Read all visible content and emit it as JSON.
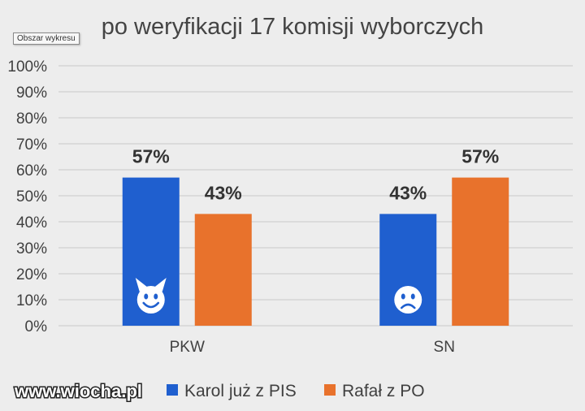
{
  "tooltip": "Obszar wykresu",
  "watermark": "www.wiocha.pl",
  "chart_data": {
    "type": "bar",
    "title": "po weryfikacji 17 komisji wyborczych",
    "categories": [
      "PKW",
      "SN"
    ],
    "series": [
      {
        "name": "Karol już z PIS",
        "color": "#1f5fcf",
        "values": [
          57,
          43
        ],
        "labels": [
          "57%",
          "43%"
        ]
      },
      {
        "name": "Rafał z PO",
        "color": "#e8722c",
        "values": [
          43,
          57
        ],
        "labels": [
          "43%",
          "57%"
        ]
      }
    ],
    "ylim": [
      0,
      100
    ],
    "yticks": [
      0,
      10,
      20,
      30,
      40,
      50,
      60,
      70,
      80,
      90,
      100
    ],
    "ytick_labels": [
      "0%",
      "10%",
      "20%",
      "30%",
      "40%",
      "50%",
      "60%",
      "70%",
      "80%",
      "90%",
      "100%"
    ],
    "grid": true,
    "legend": "bottom",
    "bar_icons": [
      {
        "category": "PKW",
        "series": "Karol już z PIS",
        "icon": "smiling-devil-icon"
      },
      {
        "category": "SN",
        "series": "Karol już z PIS",
        "icon": "sad-face-icon"
      }
    ]
  }
}
